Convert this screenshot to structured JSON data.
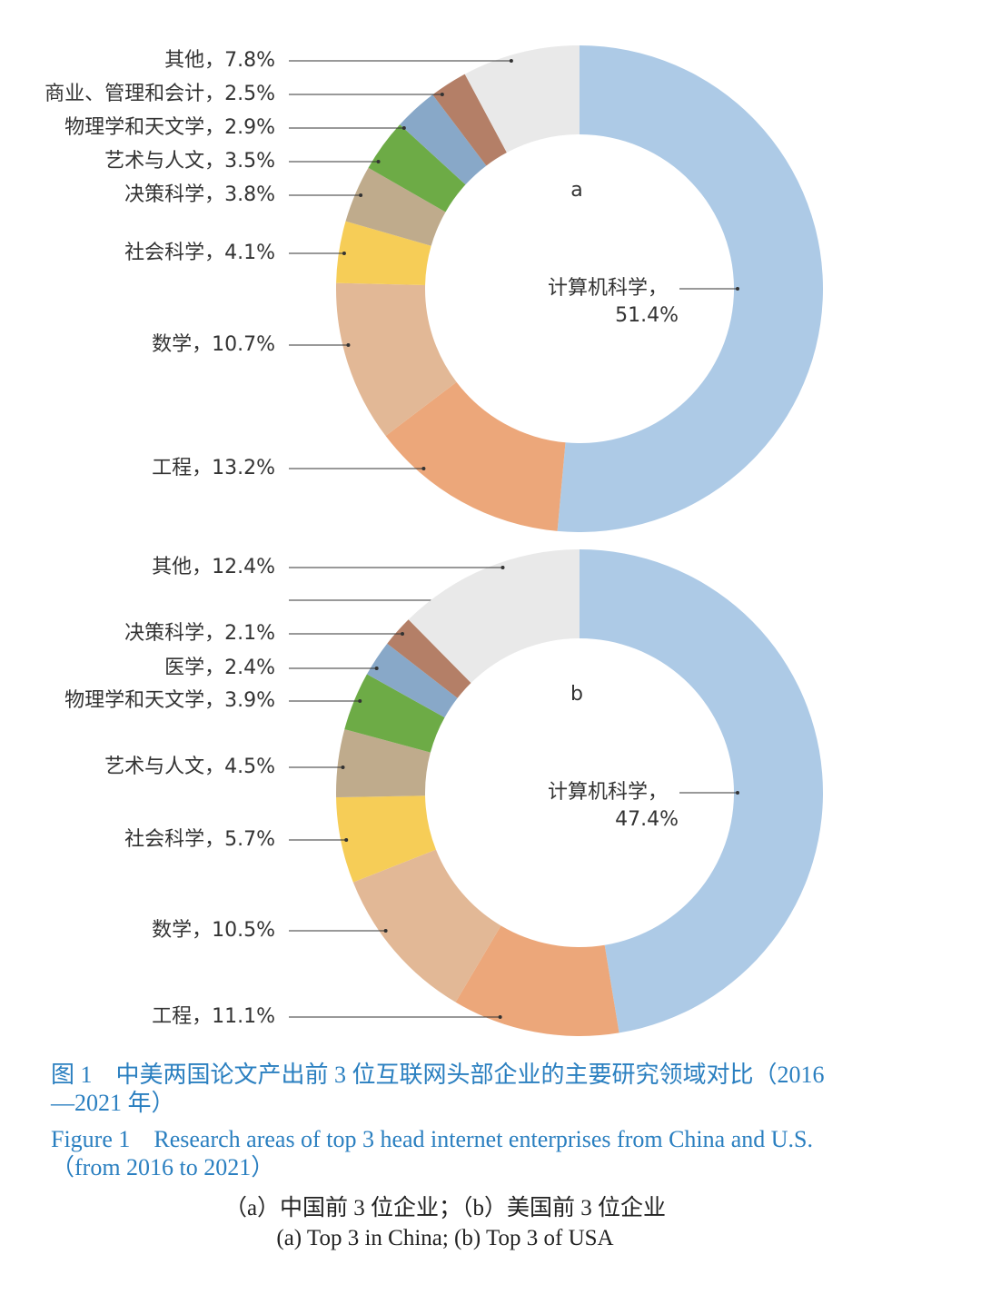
{
  "chart_data": [
    {
      "type": "donut",
      "title": "a",
      "values": [
        51.4,
        13.2,
        10.7,
        4.1,
        3.8,
        3.5,
        2.9,
        2.5,
        7.8
      ],
      "value_labels": [
        "计算机科学，\n51.4%",
        "工程，13.2%",
        "数学，10.7%",
        "社会科学，4.1%",
        "决策科学，3.8%",
        "艺术与人文，3.5%",
        "物理学和天文学，2.9%",
        "商业、管理和会计，2.5%",
        "其他，7.8%"
      ],
      "colors": [
        "#adcae6",
        "#eca77a",
        "#e2b896",
        "#f6cd57",
        "#bfab8c",
        "#6dab46",
        "#88a8c8",
        "#b47f67",
        "#e9e9e9"
      ]
    },
    {
      "type": "donut",
      "title": "b",
      "values": [
        47.4,
        11.1,
        10.5,
        5.7,
        4.5,
        3.9,
        2.4,
        2.1,
        0,
        12.4
      ],
      "value_labels": [
        "计算机科学，\n47.4%",
        "工程，11.1%",
        "数学，10.5%",
        "社会科学，5.7%",
        "艺术与人文，4.5%",
        "物理学和天文学，3.9%",
        "医学，2.4%",
        "决策科学，2.1%",
        null,
        "其他，12.4%"
      ],
      "colors": [
        "#adcae6",
        "#eca77a",
        "#e2b896",
        "#f6cd57",
        "#bfab8c",
        "#6dab46",
        "#88a8c8",
        "#b47f67",
        "#d8d8d8",
        "#e9e9e9"
      ]
    }
  ],
  "caption": {
    "zh_title": "图 1　中美两国论文产出前 3 位互联网头部企业的主要研究领域对比（2016—2021 年）",
    "en_title": "Figure 1　Research areas of top 3 head internet enterprises from China and U.S.（from 2016 to 2021）",
    "zh_sub": "（a）中国前 3 位企业；（b）美国前 3 位企业",
    "en_sub": "(a) Top 3 in China; (b) Top 3 of USA"
  }
}
